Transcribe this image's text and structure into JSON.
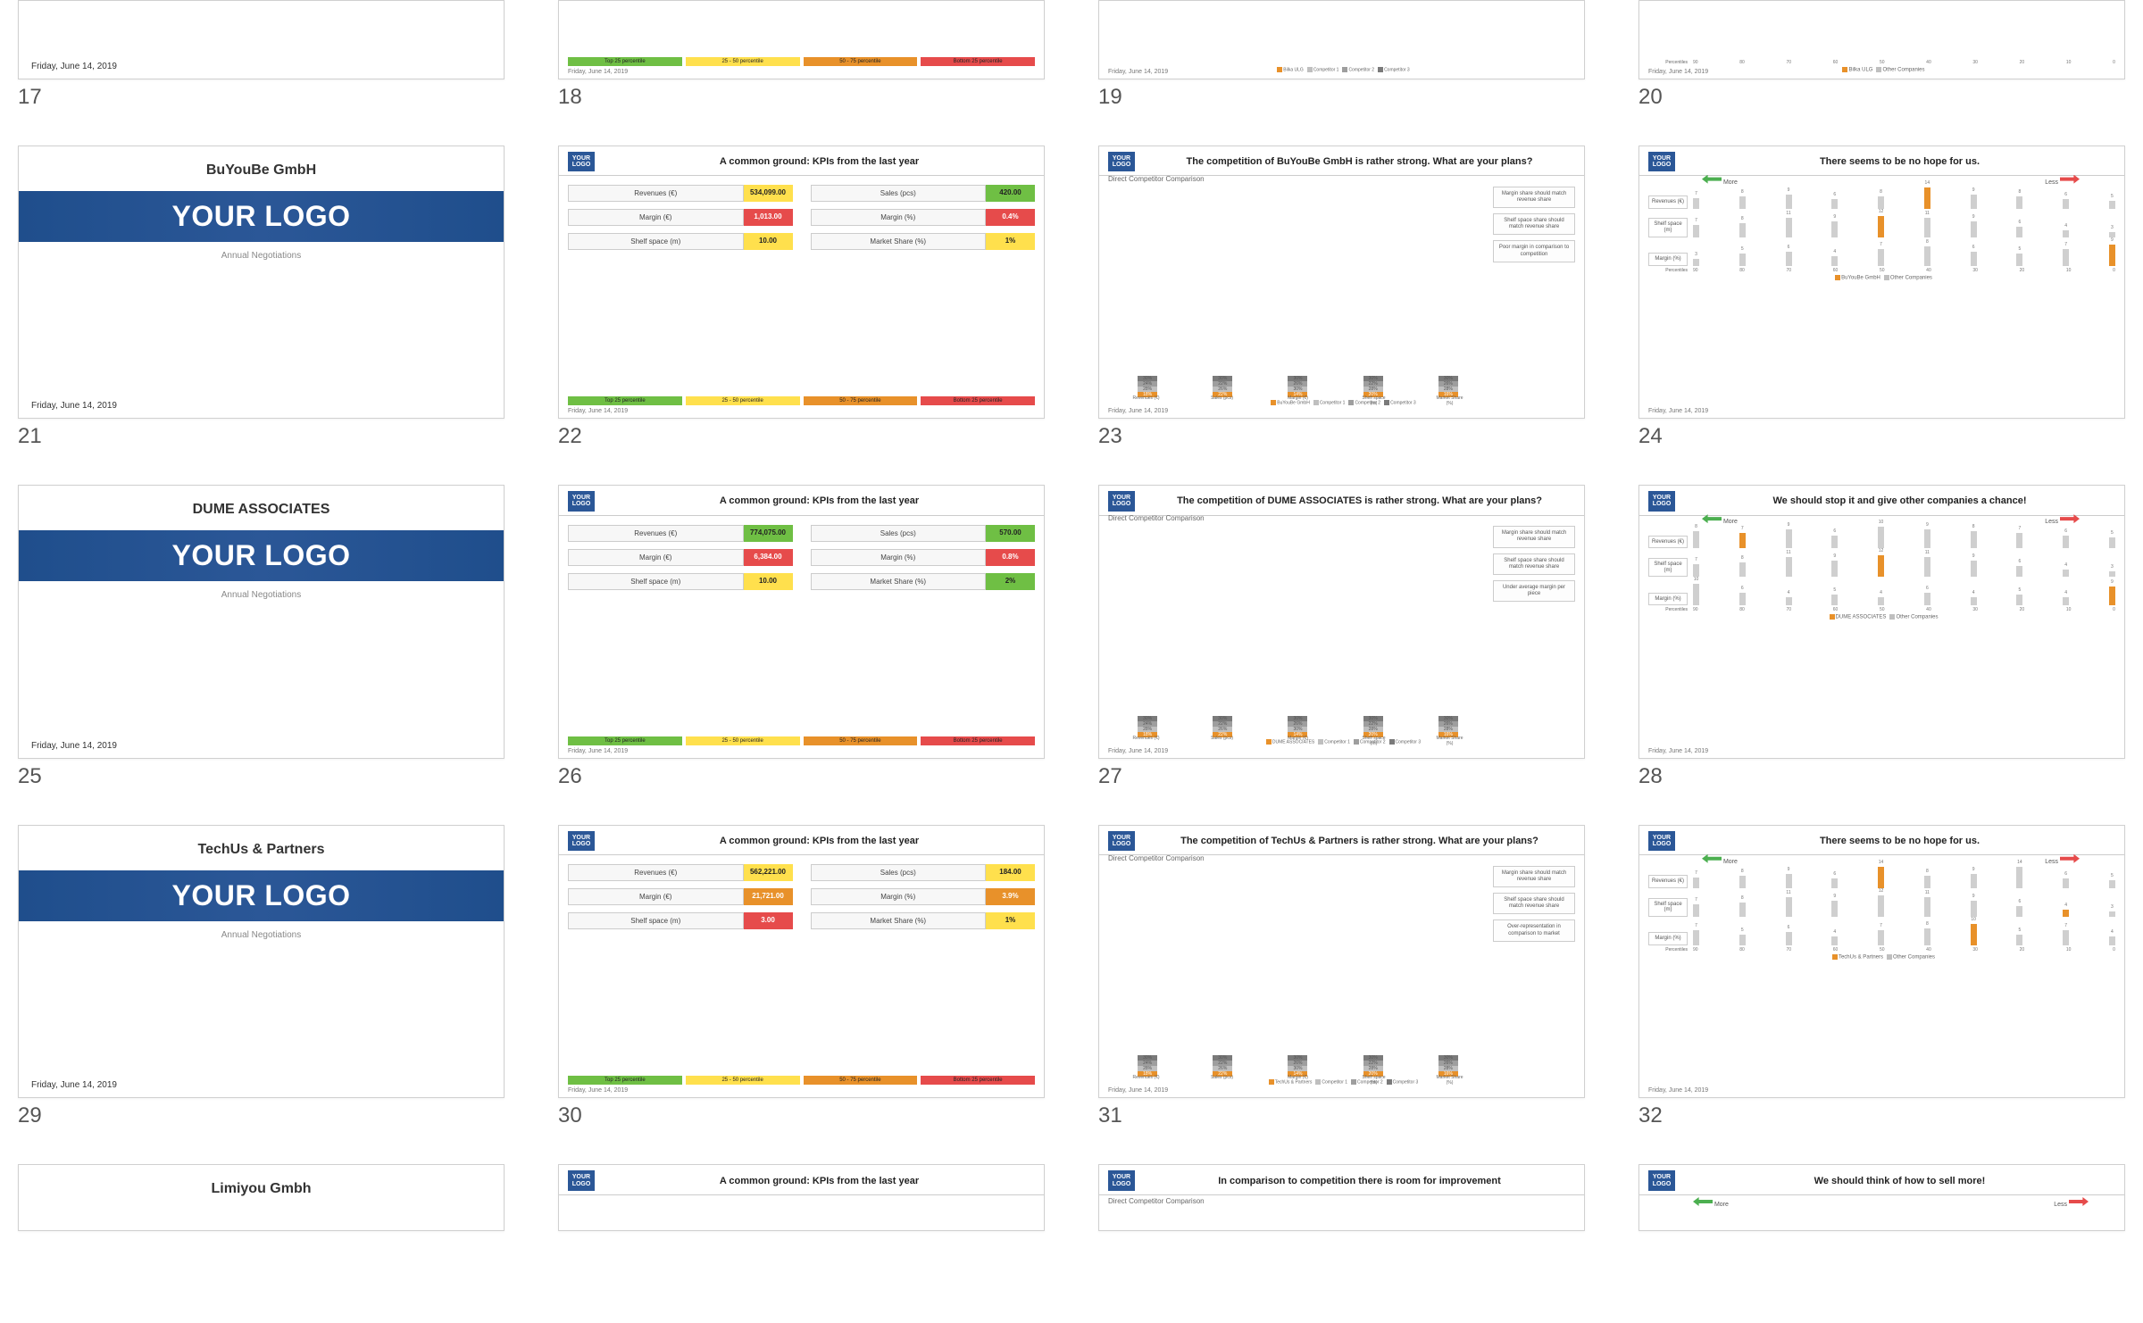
{
  "common": {
    "date": "Friday, June 14, 2019",
    "logo_text": "YOUR LOGO",
    "logo_chip": "YOUR\nLOGO",
    "annual": "Annual Negotiations",
    "kpi_title": "A common ground: KPIs from the last year",
    "kpi_labels": {
      "rev": "Revenues (€)",
      "sales": "Sales (pcs)",
      "margin_e": "Margin (€)",
      "margin_p": "Margin (%)",
      "shelf": "Shelf space (m)",
      "mshare": "Market Share (%)"
    },
    "kpi_legend": [
      "Top 25 percentile",
      "25 - 50 percentile",
      "50 - 75 percentile",
      "Bottom 25 percentile"
    ],
    "comp_sub": "Direct Competitor Comparison",
    "comp_cats": [
      "Revenues (€)",
      "Sales (pcs)",
      "Margin (€)",
      "Shelf space (m)",
      "Market Share (%)"
    ],
    "comp_competitors": [
      "Competitor 1",
      "Competitor 2",
      "Competitor 3"
    ],
    "pct_labels": [
      "Revenues (€)",
      "Shelf space (m)",
      "Margin (%)"
    ],
    "pct_axis_label": "Percentiles",
    "pct_axis_vals": [
      "90",
      "80",
      "70",
      "60",
      "50",
      "40",
      "30",
      "20",
      "10",
      "0"
    ],
    "more": "More",
    "less": "Less",
    "other_comp": "Other Companies"
  },
  "slides": [
    {
      "n": 17,
      "type": "partial_title"
    },
    {
      "n": 18,
      "type": "partial_kpi"
    },
    {
      "n": 19,
      "type": "partial_comp",
      "company": "Bilka ULG"
    },
    {
      "n": 20,
      "type": "partial_pct",
      "company": "Bilka ULG"
    },
    {
      "n": 21,
      "type": "title",
      "company": "BuYouBe GmbH"
    },
    {
      "n": 22,
      "type": "kpi",
      "vals": {
        "rev": "534,099.00",
        "rev_c": "y",
        "sales": "420.00",
        "sales_c": "g",
        "margin_e": "1,013.00",
        "margin_e_c": "r",
        "margin_p": "0.4%",
        "margin_p_c": "r",
        "shelf": "10.00",
        "shelf_c": "y",
        "mshare": "1%",
        "mshare_c": "y"
      }
    },
    {
      "n": 23,
      "type": "comp",
      "company": "BuYouBe GmbH",
      "title": "The competition of BuYouBe GmbH is rather strong. What are your plans?",
      "legend_company": "BuYouBe GmbH",
      "notes": [
        "Margin share should match revenue share",
        "Shelf space share should match revenue share",
        "Poor margin in comparison to competition"
      ]
    },
    {
      "n": 24,
      "type": "pct",
      "company": "BuYouBe GmbH",
      "title": "There seems to be no hope for us.",
      "legend_company": "BuYouBe GmbH",
      "rows": [
        {
          "vals": [
            7,
            8,
            9,
            6,
            8,
            14,
            9,
            8,
            6,
            5
          ],
          "hi": 5
        },
        {
          "vals": [
            7,
            8,
            11,
            9,
            12,
            11,
            9,
            6,
            4,
            3
          ],
          "hi": 4
        },
        {
          "vals": [
            3,
            5,
            6,
            4,
            7,
            8,
            6,
            5,
            7,
            9
          ],
          "hi": 9
        }
      ]
    },
    {
      "n": 25,
      "type": "title",
      "company": "DUME ASSOCIATES"
    },
    {
      "n": 26,
      "type": "kpi",
      "vals": {
        "rev": "774,075.00",
        "rev_c": "g",
        "sales": "570.00",
        "sales_c": "g",
        "margin_e": "6,384.00",
        "margin_e_c": "r",
        "margin_p": "0.8%",
        "margin_p_c": "r",
        "shelf": "10.00",
        "shelf_c": "y",
        "mshare": "2%",
        "mshare_c": "g"
      }
    },
    {
      "n": 27,
      "type": "comp",
      "company": "DUME ASSOCIATES",
      "title": "The competition of DUME ASSOCIATES is rather strong. What are your plans?",
      "legend_company": "DUME ASSOCIATES",
      "notes": [
        "Margin share should match revenue share",
        "Shelf space share should match revenue share",
        "Under average margin per piece"
      ]
    },
    {
      "n": 28,
      "type": "pct",
      "company": "DUME ASSOCIATES",
      "title": "We should stop it and give other companies a chance!",
      "legend_company": "DUME ASSOCIATES",
      "rows": [
        {
          "vals": [
            8,
            7,
            9,
            6,
            10,
            9,
            8,
            7,
            6,
            5
          ],
          "hi": 1
        },
        {
          "vals": [
            7,
            8,
            11,
            9,
            12,
            11,
            9,
            6,
            4,
            3
          ],
          "hi": 4
        },
        {
          "vals": [
            10,
            6,
            4,
            5,
            4,
            6,
            4,
            5,
            4,
            9
          ],
          "hi": 9
        }
      ]
    },
    {
      "n": 29,
      "type": "title",
      "company": "TechUs & Partners"
    },
    {
      "n": 30,
      "type": "kpi",
      "vals": {
        "rev": "562,221.00",
        "rev_c": "y",
        "sales": "184.00",
        "sales_c": "y",
        "margin_e": "21,721.00",
        "margin_e_c": "o",
        "margin_p": "3.9%",
        "margin_p_c": "o",
        "shelf": "3.00",
        "shelf_c": "r",
        "mshare": "1%",
        "mshare_c": "y"
      }
    },
    {
      "n": 31,
      "type": "comp",
      "company": "TechUs & Partners",
      "title": "The competition of TechUs & Partners is rather strong. What are your plans?",
      "legend_company": "TechUs & Partners",
      "notes": [
        "Margin share should match revenue share",
        "Shelf space share should match revenue share",
        "Over-representation in comparison to market"
      ]
    },
    {
      "n": 32,
      "type": "pct",
      "company": "TechUs & Partners",
      "title": "There seems to be no hope for us.",
      "legend_company": "TechUs & Partners",
      "rows": [
        {
          "vals": [
            7,
            8,
            9,
            6,
            14,
            8,
            9,
            14,
            6,
            5
          ],
          "hi": 4
        },
        {
          "vals": [
            7,
            8,
            11,
            9,
            12,
            11,
            9,
            6,
            4,
            3
          ],
          "hi": 8
        },
        {
          "vals": [
            7,
            5,
            6,
            4,
            7,
            8,
            10,
            5,
            7,
            4
          ],
          "hi": 6
        }
      ]
    },
    {
      "n": 33,
      "type": "top_title",
      "company": "Limiyou Gmbh"
    },
    {
      "n": 34,
      "type": "top_kpi"
    },
    {
      "n": 35,
      "type": "top_comp",
      "title": "In comparison to competition there is room for improvement"
    },
    {
      "n": 36,
      "type": "top_pct",
      "title": "We should think of how to sell more!"
    }
  ],
  "stack_template": [
    {
      "oc": 18,
      "g1": 28,
      "g2": 24,
      "g3": 30
    },
    {
      "oc": 22,
      "g1": 26,
      "g2": 22,
      "g3": 30
    },
    {
      "oc": 14,
      "g1": 30,
      "g2": 26,
      "g3": 30
    },
    {
      "oc": 20,
      "g1": 28,
      "g2": 22,
      "g3": 30
    },
    {
      "oc": 16,
      "g1": 28,
      "g2": 26,
      "g3": 30
    }
  ],
  "colors": {
    "orange": "#e8912a",
    "gray1": "#bfbfbf",
    "gray2": "#9e9e9e",
    "gray3": "#7a7a7a"
  }
}
